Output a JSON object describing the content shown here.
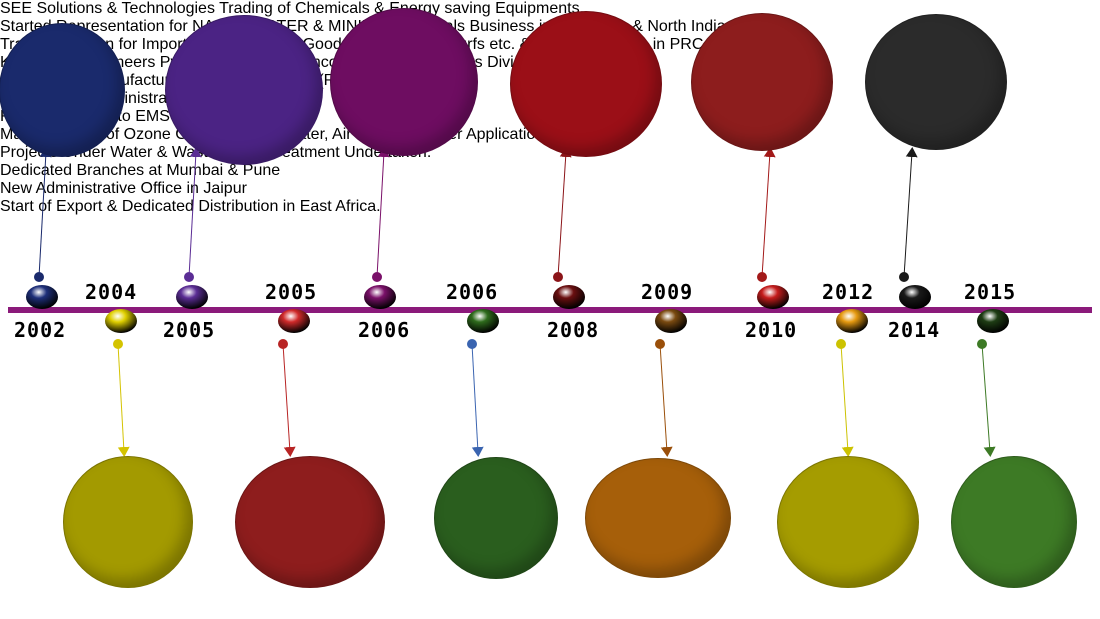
{
  "timeline": {
    "line_color": "#8b1a7a",
    "events_above": [
      {
        "year": "2002",
        "text": "SEE Solutions\n&\nTechnologies\nTrading of\nChemicals &\nEnergy saving\nEquipments.",
        "color": "#1a2a6c",
        "ball": "#1e2f7a",
        "dot": "#1a2a6c"
      },
      {
        "year": "2005",
        "text": "Started\nRepresentation for\nNALCO-WATER &\nMINING\nChemicals\nBusiness in\nRajasthan & North\nIndia.",
        "color": "#4b2384",
        "ball": "#5b2d95",
        "dot": "#5b2d95"
      },
      {
        "year": "2006",
        "text": "Trading Division\nfor Imports of\nCommodity\nGoods like\nFlooring, Turfs\netc. & start of an\noffice in PRC.",
        "color": "#6e0d61",
        "ball": "#7a1069",
        "dot": "#7a1069"
      },
      {
        "year": "2008",
        "text": "KSP Hydro\nEngineers Pvt. Ltd.\ndedicatedly\nincorporated for\nProjects Division\nUnder Water.",
        "color": "#9b0f17",
        "ball": "#6a0f10",
        "dot": "#8b1418"
      },
      {
        "year": "2010",
        "text": "Start of new\nManufacturing\nfacility in\nJAIPUR(RIICO)",
        "color": "#8d1d1d",
        "ball": "#c51c1c",
        "dot": "#a31919"
      },
      {
        "year": "2014",
        "text": "Start of New\nAdministrative Office\nin Mumbai.",
        "color": "#2b2b2b",
        "ball": "#1a1a1a",
        "dot": "#1a1a1a"
      }
    ],
    "events_below": [
      {
        "year": "2004",
        "text": "Representatio\nn to EMS\nEuropean in\nINDIA",
        "color": "#a39a00",
        "ball": "#e0d000",
        "dot": "#d4c300"
      },
      {
        "year": "2005",
        "text": "Manufacturing of\nOzone Generators\nfor Water, Air &\nWaste Water\nApplications.",
        "color": "#8e1d1d",
        "ball": "#d02a2a",
        "dot": "#b82424"
      },
      {
        "year": "2006",
        "text": "Projects Under\nWater & Waste\nWater Treatment\nUndertaken.",
        "color": "#2a5e1e",
        "ball": "#2e6b1c",
        "dot": "#3a64b0"
      },
      {
        "year": "2009",
        "text": "Dedicated\nBranches at\nMumbai & Pune",
        "color": "#a65f0a",
        "ball": "#7a4a10",
        "dot": "#9a4f0a"
      },
      {
        "year": "2012",
        "text": "New Administrative\nOffice in Jaipur",
        "color": "#a59c00",
        "ball": "#e69a10",
        "dot": "#ccc200"
      },
      {
        "year": "2015",
        "text": "Start of Export &\nDedicated\nDistribution in\nEast Africa.",
        "color": "#3d7a25",
        "ball": "#1e3d14",
        "dot": "#3d7a25"
      }
    ]
  }
}
